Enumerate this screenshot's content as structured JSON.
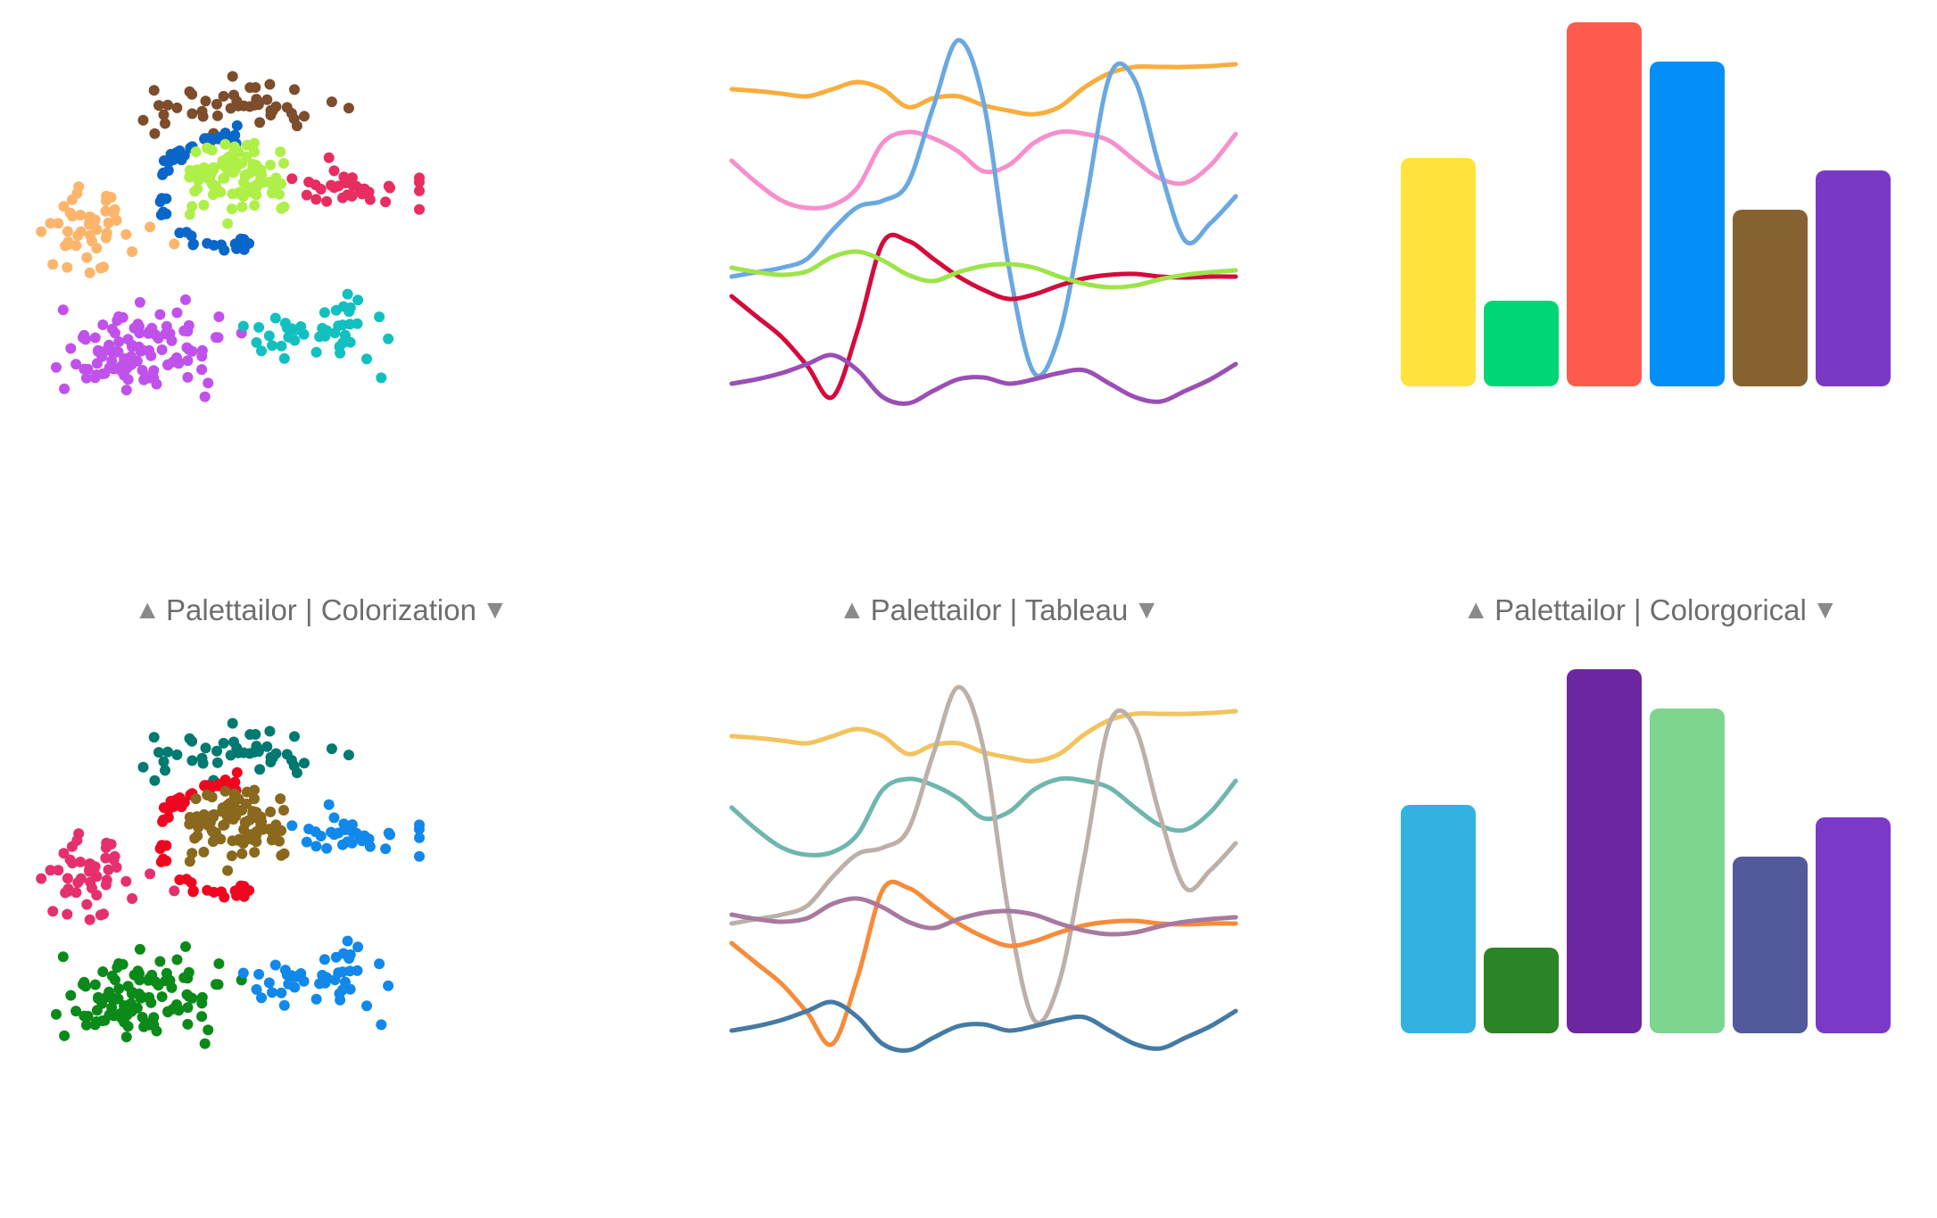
{
  "captions": [
    {
      "up": "▲",
      "text": "Palettailor | Colorization",
      "down": "▼"
    },
    {
      "up": "▲",
      "text": "Palettailor | Tableau",
      "down": "▼"
    },
    {
      "up": "▲",
      "text": "Palettailor | Colorgorical",
      "down": "▼"
    }
  ],
  "palettes": {
    "top": {
      "scatter": [
        "#7d4d2c",
        "#0a67c9",
        "#aef048",
        "#e82d61",
        "#fcb56b",
        "#c052eb",
        "#12c0c0"
      ],
      "line": [
        "#f7ae3c",
        "#f78fcd",
        "#6aa8e2",
        "#d30c3d",
        "#9de44a",
        "#9a4fb5"
      ],
      "bar": [
        "#fee33d",
        "#00d675",
        "#fd5c4d",
        "#048ff8",
        "#876231",
        "#7a39c5"
      ]
    },
    "bottom": {
      "scatter": [
        "#007a70",
        "#f00520",
        "#8a681d",
        "#1188ea",
        "#e6306e",
        "#0b8a19",
        "#1188ea"
      ],
      "line": [
        "#f2c35e",
        "#6fb6ad",
        "#bdb0a9",
        "#f68b39",
        "#a879a0",
        "#447aa3"
      ],
      "bar": [
        "#33b2e1",
        "#2b8425",
        "#6c27a0",
        "#7ed58f",
        "#525a9b",
        "#7a3ac7"
      ]
    }
  },
  "chart_data": [
    {
      "type": "scatter",
      "title": "",
      "clusters": [
        {
          "name": "",
          "shape": "blob",
          "cx": 258,
          "cy": 98,
          "rx": 110,
          "ry": 38,
          "n": 45
        },
        {
          "name": "",
          "shape": "ring",
          "cx": 248,
          "cy": 195,
          "rx": 68,
          "ry": 62,
          "n": 55
        },
        {
          "name": "",
          "shape": "blob",
          "cx": 262,
          "cy": 180,
          "rx": 62,
          "ry": 40,
          "n": 95
        },
        {
          "name": "",
          "shape": "blob",
          "cx": 392,
          "cy": 193,
          "rx": 76,
          "ry": 25,
          "n": 35
        },
        {
          "name": "",
          "shape": "blob",
          "cx": 102,
          "cy": 240,
          "rx": 52,
          "ry": 60,
          "n": 50
        },
        {
          "name": "",
          "shape": "blob",
          "cx": 154,
          "cy": 372,
          "rx": 90,
          "ry": 50,
          "n": 110
        },
        {
          "name": "",
          "shape": "blob",
          "cx": 360,
          "cy": 354,
          "rx": 86,
          "ry": 46,
          "n": 45
        }
      ],
      "xlim": [
        45,
        470
      ],
      "ylim": [
        440,
        25
      ]
    },
    {
      "type": "line",
      "title": "",
      "x": [
        0,
        1,
        2,
        3,
        4,
        5,
        6,
        7,
        8,
        9,
        10,
        11,
        12,
        13,
        14,
        15,
        16,
        17,
        18,
        19,
        20
      ],
      "series": [
        {
          "values": [
            80,
            82,
            85,
            88,
            80,
            72,
            80,
            100,
            90,
            88,
            98,
            104,
            108,
            100,
            78,
            62,
            55,
            55,
            55,
            54,
            52
          ]
        },
        {
          "values": [
            160,
            185,
            205,
            213,
            210,
            190,
            140,
            128,
            135,
            150,
            172,
            165,
            140,
            128,
            130,
            138,
            160,
            180,
            185,
            165,
            130
          ]
        },
        {
          "values": [
            290,
            285,
            280,
            270,
            238,
            212,
            205,
            185,
            100,
            25,
            95,
            280,
            398,
            355,
            215,
            65,
            70,
            170,
            250,
            230,
            200
          ]
        },
        {
          "values": [
            312,
            335,
            358,
            390,
            425,
            350,
            252,
            250,
            270,
            290,
            305,
            315,
            310,
            300,
            292,
            288,
            287,
            290,
            291,
            290,
            290
          ]
        },
        {
          "values": [
            280,
            285,
            288,
            284,
            268,
            262,
            272,
            288,
            295,
            285,
            278,
            276,
            280,
            290,
            298,
            302,
            300,
            293,
            288,
            285,
            283
          ]
        },
        {
          "values": [
            410,
            405,
            398,
            388,
            378,
            395,
            425,
            432,
            418,
            405,
            403,
            410,
            405,
            398,
            395,
            410,
            425,
            430,
            418,
            405,
            388
          ]
        }
      ],
      "xlim": [
        0,
        20
      ],
      "ylim": [
        0,
        440
      ]
    },
    {
      "type": "bar",
      "title": "",
      "categories": [
        "",
        "",
        "",
        "",
        "",
        ""
      ],
      "values": [
        256,
        96,
        408,
        364,
        198,
        242
      ],
      "ylim": [
        0,
        430
      ]
    },
    {
      "type": "scatter",
      "title": "",
      "clusters": [
        {
          "name": "",
          "shape": "blob",
          "cx": 258,
          "cy": 98,
          "rx": 110,
          "ry": 38,
          "n": 45
        },
        {
          "name": "",
          "shape": "ring",
          "cx": 248,
          "cy": 195,
          "rx": 68,
          "ry": 62,
          "n": 55
        },
        {
          "name": "",
          "shape": "blob",
          "cx": 262,
          "cy": 180,
          "rx": 62,
          "ry": 40,
          "n": 95
        },
        {
          "name": "",
          "shape": "blob",
          "cx": 392,
          "cy": 193,
          "rx": 76,
          "ry": 25,
          "n": 35
        },
        {
          "name": "",
          "shape": "blob",
          "cx": 102,
          "cy": 240,
          "rx": 52,
          "ry": 60,
          "n": 50
        },
        {
          "name": "",
          "shape": "blob",
          "cx": 154,
          "cy": 372,
          "rx": 90,
          "ry": 50,
          "n": 110
        },
        {
          "name": "",
          "shape": "blob",
          "cx": 360,
          "cy": 354,
          "rx": 86,
          "ry": 46,
          "n": 45
        }
      ],
      "xlim": [
        45,
        470
      ],
      "ylim": [
        440,
        25
      ]
    },
    {
      "type": "line",
      "title": "",
      "x": [
        0,
        1,
        2,
        3,
        4,
        5,
        6,
        7,
        8,
        9,
        10,
        11,
        12,
        13,
        14,
        15,
        16,
        17,
        18,
        19,
        20
      ],
      "series": [
        {
          "values": [
            80,
            82,
            85,
            88,
            80,
            72,
            80,
            100,
            90,
            88,
            98,
            104,
            108,
            100,
            78,
            62,
            55,
            55,
            55,
            54,
            52
          ]
        },
        {
          "values": [
            160,
            185,
            205,
            213,
            210,
            190,
            140,
            128,
            135,
            150,
            172,
            165,
            140,
            128,
            130,
            138,
            160,
            180,
            185,
            165,
            130
          ]
        },
        {
          "values": [
            290,
            285,
            280,
            270,
            238,
            212,
            205,
            185,
            100,
            25,
            95,
            280,
            398,
            355,
            215,
            65,
            70,
            170,
            250,
            230,
            200
          ]
        },
        {
          "values": [
            312,
            335,
            358,
            390,
            425,
            350,
            252,
            250,
            270,
            290,
            305,
            315,
            310,
            300,
            292,
            288,
            287,
            290,
            291,
            290,
            290
          ]
        },
        {
          "values": [
            280,
            285,
            288,
            284,
            268,
            262,
            272,
            288,
            295,
            285,
            278,
            276,
            280,
            290,
            298,
            302,
            300,
            293,
            288,
            285,
            283
          ]
        },
        {
          "values": [
            410,
            405,
            398,
            388,
            378,
            395,
            425,
            432,
            418,
            405,
            403,
            410,
            405,
            398,
            395,
            410,
            425,
            430,
            418,
            405,
            388
          ]
        }
      ],
      "xlim": [
        0,
        20
      ],
      "ylim": [
        0,
        440
      ]
    },
    {
      "type": "bar",
      "title": "",
      "categories": [
        "",
        "",
        "",
        "",
        "",
        ""
      ],
      "values": [
        256,
        96,
        408,
        364,
        198,
        242
      ],
      "ylim": [
        0,
        430
      ]
    }
  ]
}
